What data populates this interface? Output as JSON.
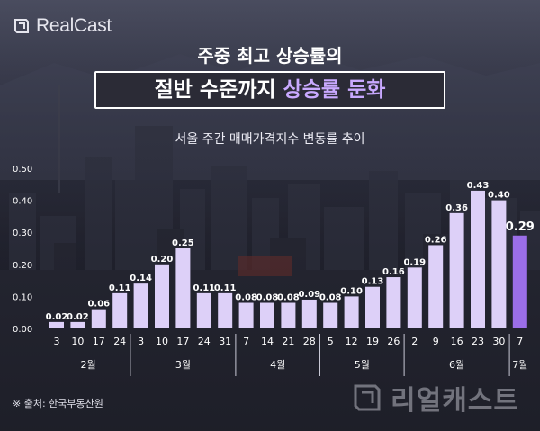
{
  "brand": {
    "logo_text": "RealCast",
    "watermark_text": "리얼캐스트"
  },
  "header": {
    "title_line1": "주중 최고 상승률의",
    "title_line2_white": "절반 수준까지",
    "title_line2_accent": "상승률 둔화",
    "subtitle": "서울 주간 매매가격지수 변동률 추이"
  },
  "source": "※ 출처: 한국부동산원",
  "colors": {
    "bar": "#ddd0f8",
    "bar_last": "#9b6ee8",
    "accent": "#c9a9ff",
    "last_label_box": "#6b45b8"
  },
  "chart_data": {
    "type": "bar",
    "title": "서울 주간 매매가격지수 변동률 추이",
    "categories": [
      "3",
      "10",
      "17",
      "24",
      "3",
      "10",
      "17",
      "24",
      "31",
      "7",
      "14",
      "21",
      "28",
      "5",
      "12",
      "19",
      "26",
      "2",
      "9",
      "16",
      "23",
      "30",
      "7"
    ],
    "values": [
      0.02,
      0.02,
      0.06,
      0.11,
      0.14,
      0.2,
      0.25,
      0.11,
      0.11,
      0.08,
      0.08,
      0.08,
      0.09,
      0.08,
      0.1,
      0.13,
      0.16,
      0.19,
      0.26,
      0.36,
      0.43,
      0.4,
      0.29
    ],
    "value_labels": [
      "0.02",
      "0.02",
      "0.06",
      "0.11",
      "0.14",
      "0.20",
      "0.25",
      "0.11",
      "0.11",
      "0.08",
      "0.08",
      "0.08",
      "0.09",
      "0.08",
      "0.10",
      "0.13",
      "0.16",
      "0.19",
      "0.26",
      "0.36",
      "0.43",
      "0.40",
      "0.29"
    ],
    "months": [
      {
        "label": "2월",
        "start": 0,
        "end": 3
      },
      {
        "label": "3월",
        "start": 4,
        "end": 8
      },
      {
        "label": "4월",
        "start": 9,
        "end": 12
      },
      {
        "label": "5월",
        "start": 13,
        "end": 16
      },
      {
        "label": "6월",
        "start": 17,
        "end": 21
      },
      {
        "label": "7월",
        "start": 22,
        "end": 22
      }
    ],
    "ylim": [
      0,
      0.5
    ],
    "yticks": [
      "0.00",
      "0.10",
      "0.20",
      "0.30",
      "0.40",
      "0.50"
    ],
    "grid": false,
    "highlight_index": 22
  }
}
